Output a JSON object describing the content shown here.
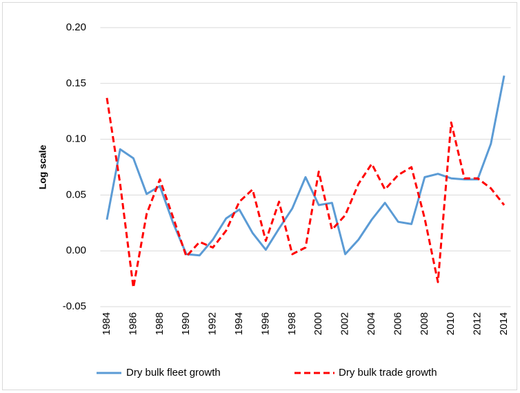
{
  "chart_data": {
    "type": "line",
    "y_label": "Log scale",
    "categories": [
      "1984",
      null,
      "1986",
      null,
      "1988",
      null,
      "1990",
      null,
      "1992",
      null,
      "1994",
      null,
      "1996",
      null,
      "1998",
      null,
      "2000",
      null,
      "2002",
      null,
      "2004",
      null,
      "2006",
      null,
      "2008",
      null,
      "2010",
      null,
      "2012",
      null,
      "2014"
    ],
    "series": [
      {
        "name": "Dry bulk fleet growth",
        "color": "#5b9bd5",
        "dash": "solid",
        "values": [
          0.028,
          0.091,
          0.083,
          0.051,
          0.058,
          0.025,
          -0.003,
          -0.004,
          0.01,
          0.029,
          0.037,
          0.016,
          0.001,
          0.02,
          0.038,
          0.066,
          0.041,
          0.043,
          -0.003,
          0.01,
          0.028,
          0.043,
          0.026,
          0.024,
          0.066,
          0.069,
          0.065,
          0.064,
          0.064,
          0.096,
          0.157
        ]
      },
      {
        "name": "Dry bulk trade growth",
        "color": "#ff0000",
        "dash": "dashed",
        "values": [
          0.137,
          0.06,
          -0.033,
          0.033,
          0.064,
          0.03,
          -0.005,
          0.008,
          0.003,
          0.018,
          0.044,
          0.055,
          0.009,
          0.044,
          -0.003,
          0.003,
          0.071,
          0.019,
          0.032,
          0.06,
          0.078,
          0.055,
          0.068,
          0.075,
          0.029,
          -0.028,
          0.115,
          0.065,
          0.065,
          0.056,
          0.041
        ]
      }
    ],
    "ylim": [
      -0.05,
      0.2
    ],
    "yticks": [
      {
        "value": -0.05,
        "label": "-0.05"
      },
      {
        "value": 0,
        "label": "0.00"
      },
      0.05,
      {
        "value": 0.1,
        "label": "0.10"
      },
      0.15,
      {
        "value": 0.2,
        "label": "0.20"
      }
    ],
    "grid": true,
    "legend": "bottom"
  }
}
